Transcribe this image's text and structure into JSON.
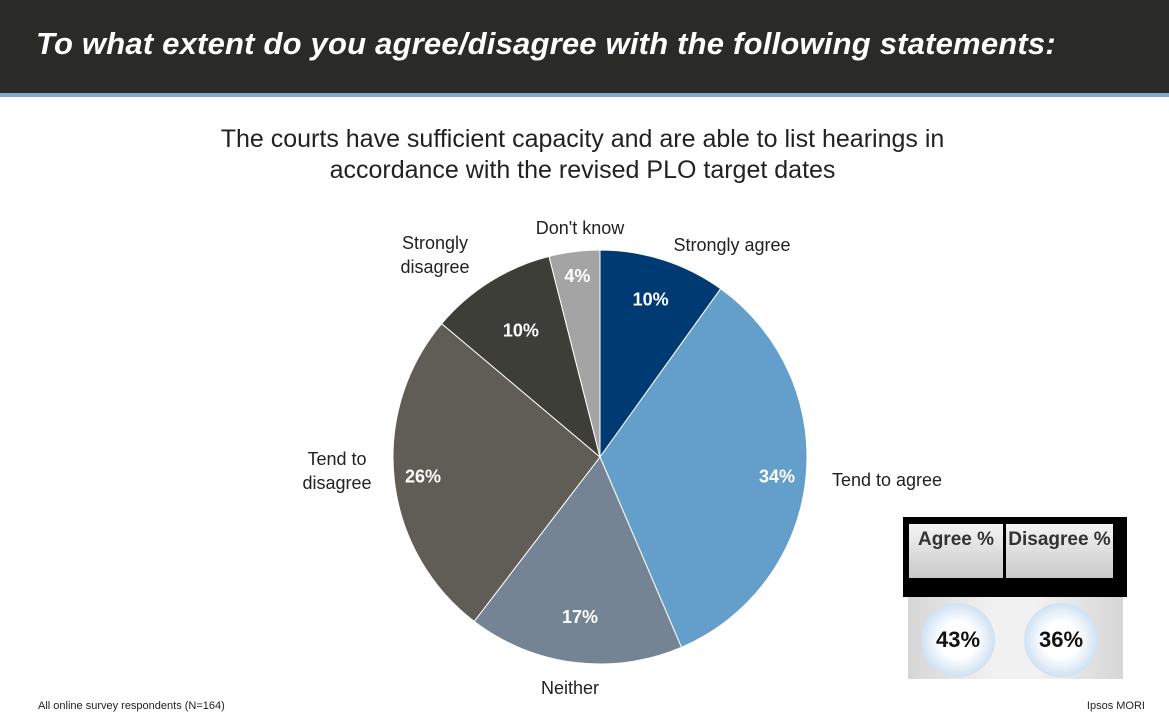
{
  "header": {
    "title": "To what extent do you agree/disagree with the following statements:"
  },
  "chart_data": {
    "type": "pie",
    "title": "The courts have sufficient capacity and are able to list hearings in accordance with the revised PLO target dates",
    "slices": [
      {
        "label": "Strongly agree",
        "value": 10,
        "display": "10%",
        "color": "#003a73"
      },
      {
        "label": "Tend to agree",
        "value": 34,
        "display": "34%",
        "color": "#649ecb"
      },
      {
        "label": "Neither",
        "value": 17,
        "display": "17%",
        "color": "#748494"
      },
      {
        "label": "Tend to disagree",
        "value": 26,
        "display": "26%",
        "color": "#5f5d55"
      },
      {
        "label": "Strongly disagree",
        "value": 10,
        "display": "10%",
        "color": "#3e3e39"
      },
      {
        "label": "Don't know",
        "value": 4,
        "display": "4%",
        "color": "#a4a4a4"
      }
    ]
  },
  "summary": {
    "agree_header": "Agree %",
    "disagree_header": "Disagree %",
    "agree_value": "43%",
    "disagree_value": "36%"
  },
  "footer": {
    "base_note": "All online survey respondents (N=164)",
    "source": "Ipsos MORI"
  }
}
